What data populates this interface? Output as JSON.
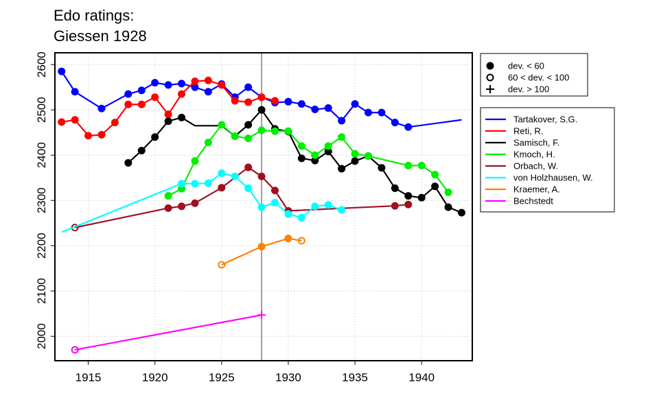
{
  "title": "Edo ratings:",
  "subtitle": "Giessen 1928",
  "colors": {
    "axis": "#000000",
    "grid": "#bbbbbb",
    "marker_line": "#808080"
  },
  "chart_data": {
    "type": "line",
    "title": "Edo ratings:",
    "subtitle": "Giessen 1928",
    "xlim": [
      1912.5,
      1943.8
    ],
    "ylim": [
      1946,
      2626
    ],
    "x_ticks": [
      1915,
      1920,
      1925,
      1930,
      1935,
      1940
    ],
    "y_ticks": [
      2000,
      2100,
      2200,
      2300,
      2400,
      2500,
      2600
    ],
    "grid": true,
    "reference_line_x": 1928,
    "legend_markers": {
      "placement": "top-right",
      "entries": [
        {
          "symbol": "filled",
          "label": "dev. < 60"
        },
        {
          "symbol": "open",
          "label": "60 < dev. < 100"
        },
        {
          "symbol": "plus",
          "label": "dev. > 100"
        }
      ]
    },
    "series": [
      {
        "name": "Tartakover, S.G.",
        "color": "#0000ff",
        "x": [
          1913,
          1914,
          1916,
          1918,
          1919,
          1920,
          1921,
          1922,
          1923,
          1924,
          1925,
          1926,
          1927,
          1928,
          1929,
          1930,
          1931,
          1932,
          1933,
          1934,
          1935,
          1936,
          1937,
          1938,
          1939
        ],
        "y": [
          2585,
          2540,
          2503,
          2535,
          2543,
          2560,
          2555,
          2558,
          2550,
          2540,
          2557,
          2528,
          2550,
          2528,
          2516,
          2518,
          2513,
          2501,
          2504,
          2476,
          2513,
          2494,
          2494,
          2472,
          2462
        ],
        "markers": [
          "filled",
          "filled",
          "filled",
          "filled",
          "filled",
          "filled",
          "filled",
          "filled",
          "filled",
          "filled",
          "filled",
          "filled",
          "filled",
          "filled",
          "filled",
          "filled",
          "filled",
          "filled",
          "filled",
          "filled",
          "filled",
          "filled",
          "filled",
          "filled",
          "filled"
        ],
        "tail": {
          "x": 1943,
          "y": 2478
        }
      },
      {
        "name": "Reti, R.",
        "color": "#ff0000",
        "x": [
          1913,
          1914,
          1915,
          1916,
          1917,
          1918,
          1919,
          1920,
          1921,
          1922,
          1923,
          1924,
          1925,
          1926,
          1927,
          1928,
          1929
        ],
        "y": [
          2473,
          2478,
          2443,
          2445,
          2472,
          2512,
          2512,
          2528,
          2490,
          2535,
          2563,
          2565,
          2555,
          2520,
          2517,
          2528,
          2520
        ],
        "markers": [
          "filled",
          "filled",
          "filled",
          "filled",
          "filled",
          "filled",
          "filled",
          "filled",
          "filled",
          "filled",
          "filled",
          "filled",
          "filled",
          "filled",
          "filled",
          "filled",
          "filled"
        ]
      },
      {
        "name": "Samisch, F.",
        "color": "#000000",
        "x": [
          1918,
          1919,
          1920,
          1921,
          1922,
          1923,
          1925,
          1926,
          1927,
          1928,
          1929,
          1930,
          1931,
          1932,
          1933,
          1934,
          1935,
          1936,
          1937,
          1938,
          1939,
          1940,
          1941,
          1942,
          1943
        ],
        "y": [
          2383,
          2410,
          2440,
          2475,
          2483,
          2465,
          2465,
          2442,
          2467,
          2500,
          2458,
          2452,
          2393,
          2388,
          2408,
          2370,
          2387,
          2398,
          2372,
          2327,
          2310,
          2306,
          2331,
          2285,
          2273
        ],
        "markers": [
          "filled",
          "filled",
          "filled",
          "filled",
          "filled",
          "none",
          "none",
          "filled",
          "filled",
          "filled",
          "filled",
          "filled",
          "filled",
          "filled",
          "filled",
          "filled",
          "filled",
          "filled",
          "filled",
          "filled",
          "filled",
          "filled",
          "filled",
          "filled",
          "filled"
        ]
      },
      {
        "name": "Kmoch, H.",
        "color": "#00ee00",
        "x": [
          1921,
          1922,
          1923,
          1924,
          1925,
          1926,
          1927,
          1928,
          1929,
          1930,
          1931,
          1932,
          1933,
          1934,
          1935,
          1936,
          1939,
          1940,
          1941,
          1942
        ],
        "y": [
          2310,
          2326,
          2387,
          2428,
          2467,
          2442,
          2437,
          2455,
          2453,
          2453,
          2420,
          2400,
          2420,
          2440,
          2403,
          2398,
          2377,
          2377,
          2357,
          2318
        ],
        "markers": [
          "filled",
          "filled",
          "filled",
          "filled",
          "filled",
          "filled",
          "filled",
          "filled",
          "filled",
          "filled",
          "filled",
          "filled",
          "filled",
          "filled",
          "filled",
          "filled",
          "filled",
          "filled",
          "filled",
          "filled"
        ]
      },
      {
        "name": "Orbach, W.",
        "color": "#a01020",
        "x": [
          1914,
          1921,
          1922,
          1923,
          1925,
          1927,
          1928,
          1929,
          1930,
          1938,
          1939
        ],
        "y": [
          2240,
          2283,
          2287,
          2294,
          2328,
          2373,
          2353,
          2322,
          2277,
          2288,
          2291
        ],
        "markers": [
          "open",
          "filled",
          "filled",
          "filled",
          "filled",
          "filled",
          "filled",
          "filled",
          "filled",
          "filled",
          "filled"
        ]
      },
      {
        "name": "von Holzhausen, W.",
        "color": "#00ffff",
        "x": [
          1922,
          1923,
          1924,
          1925,
          1926,
          1927,
          1928,
          1929,
          1930,
          1931,
          1932,
          1933,
          1934
        ],
        "y": [
          2337,
          2337,
          2338,
          2360,
          2353,
          2327,
          2285,
          2295,
          2270,
          2262,
          2287,
          2290,
          2279
        ],
        "markers": [
          "filled",
          "filled",
          "filled",
          "filled",
          "filled",
          "filled",
          "filled",
          "filled",
          "filled",
          "filled",
          "filled",
          "filled",
          "filled"
        ],
        "lead": {
          "x": 1913,
          "y": 2230
        }
      },
      {
        "name": "Kraemer, A.",
        "color": "#ff7f00",
        "x": [
          1925,
          1928,
          1930,
          1931
        ],
        "y": [
          2158,
          2198,
          2216,
          2211
        ],
        "markers": [
          "open",
          "filled",
          "filled",
          "open"
        ]
      },
      {
        "name": "Bechstedt",
        "color": "#ff00ff",
        "x": [
          1914,
          1928
        ],
        "y": [
          1970,
          2047
        ],
        "markers": [
          "open",
          "plus"
        ]
      }
    ]
  }
}
